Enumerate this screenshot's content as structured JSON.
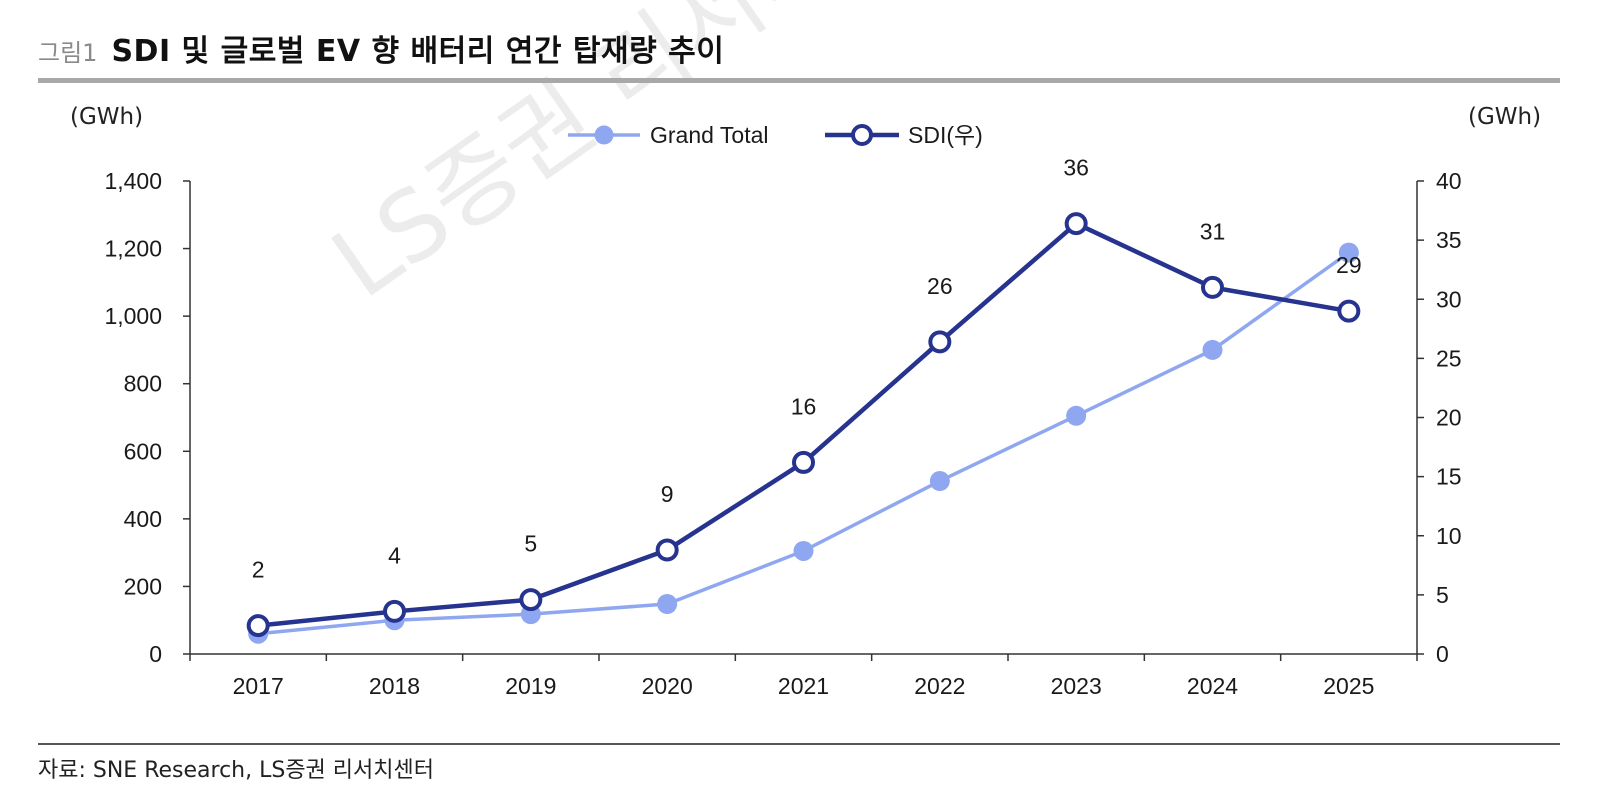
{
  "figure": {
    "label": "그림1",
    "title": "SDI 및 글로벌 EV 향 배터리 연간 탑재량 추이",
    "source": "자료: SNE Research, LS증권 리서치센터",
    "watermark": "LS증권 리서치"
  },
  "colors": {
    "grand_total": "#8fa7f0",
    "sdi": "#26338f",
    "axis": "#333333"
  },
  "chart_data": {
    "type": "line",
    "title": "SDI 및 글로벌 EV 향 배터리 연간 탑재량 추이",
    "xlabel": "",
    "y_left": {
      "label": "(GWh)",
      "lim": [
        0,
        1400
      ],
      "ticks": [
        "0",
        "200",
        "400",
        "600",
        "800",
        "1,000",
        "1,200",
        "1,400"
      ]
    },
    "y_right": {
      "label": "(GWh)",
      "lim": [
        0,
        40
      ],
      "ticks": [
        "0",
        "5",
        "10",
        "15",
        "20",
        "25",
        "30",
        "35",
        "40"
      ]
    },
    "categories": [
      "2017",
      "2018",
      "2019",
      "2020",
      "2021",
      "2022",
      "2023",
      "2024",
      "2025"
    ],
    "series": [
      {
        "name": "Grand Total",
        "axis": "left",
        "values": [
          60,
          100,
          118,
          148,
          305,
          512,
          705,
          900,
          1188
        ]
      },
      {
        "name": "SDI(우)",
        "axis": "right",
        "values": [
          2.4,
          3.6,
          4.6,
          8.8,
          16.2,
          26.4,
          36.4,
          31.0,
          29.0
        ],
        "data_labels": [
          "2",
          "4",
          "5",
          "9",
          "16",
          "26",
          "36",
          "31",
          "29"
        ]
      }
    ],
    "legend": "top-center",
    "grid": false
  }
}
